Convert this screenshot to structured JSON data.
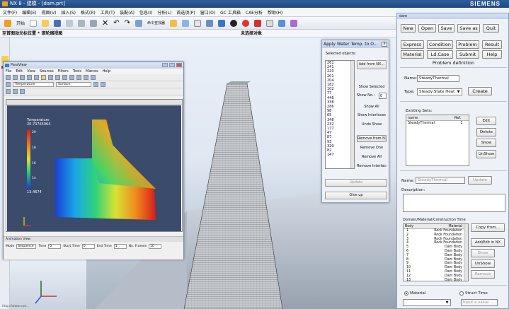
{
  "nx": {
    "title": "NX 8 - 建模 - [dam.prt]",
    "brand": "SIEMENS",
    "menu": [
      "文件(F)",
      "编辑(E)",
      "视图(V)",
      "插入(S)",
      "格式(R)",
      "工具(T)",
      "装配(A)",
      "信息(I)",
      "分析(L)",
      "首选项(P)",
      "窗口(O)",
      "GC 工具箱",
      "CAE分析",
      "帮助(H)"
    ],
    "toolbar": {
      "start_label": "开始",
      "command_finder": "命令查找器"
    },
    "status_left": "至首图动光标位置 * 滚轮缩视图",
    "status_mid": "未选择对象",
    "task_hint": "http://www.cad..."
  },
  "paraview": {
    "title": "ParaView",
    "menu": [
      "File",
      "Edit",
      "View",
      "Sources",
      "Filters",
      "Tools",
      "Macros",
      "Help"
    ],
    "toolbar2": {
      "solid_label": "Surface",
      "field_label": "Temperature"
    },
    "legend": {
      "title": "Temperature",
      "max": "20.70765064",
      "ticks": [
        "20",
        "18",
        "16",
        "14"
      ],
      "min": "13.4674"
    },
    "animation": {
      "title": "Animation View",
      "mode_label": "Mode",
      "mode_value": "Sequence",
      "time_label": "Time",
      "time_value": "0",
      "start_label": "Start Time",
      "start_value": "0",
      "end_label": "End Time",
      "end_value": "1",
      "frames_label": "No. Frames",
      "frames_value": "10"
    }
  },
  "awt": {
    "title": "Apply Water Temp. to O...",
    "close_label": "x",
    "selected_label": "Selected objects:",
    "objects": [
      "261",
      "241",
      "220",
      "201",
      "204",
      "182",
      "102",
      "77",
      "446",
      "338",
      "286",
      "98",
      "65",
      "348",
      "232",
      "177",
      "47",
      "87",
      "93",
      "329",
      "82",
      "147"
    ],
    "buttons": {
      "add_from_nx": "Add from NX...",
      "show_selected": "Show Selected",
      "show_no": "Show No.:",
      "show_no_value": "0",
      "show_all": "Show All",
      "show_interfaces": "Show Interfaces",
      "undo_show": "Undo Show",
      "remove_from_nx": "Remove from NX...",
      "remove_one": "Remove One",
      "remove_all": "Remove All",
      "remove_interfaces": "Remove Interfaces",
      "update": "Update",
      "give_up": "Give up"
    }
  },
  "dam": {
    "title": "dam",
    "row1": [
      "New",
      "Open",
      "Save",
      "Save as",
      "Quit"
    ],
    "row2": [
      "Express",
      "Condition",
      "Problem",
      "Result"
    ],
    "row3": [
      "Material",
      "Ld.Case",
      "Submit",
      "Help"
    ],
    "problem_definition": "Problem definition",
    "name_label": "Name:",
    "name_value": "SteadyThermal",
    "type_label": "Type:",
    "type_value": "Steady State Heat",
    "create_label": "Create",
    "existing_label": "Existing Sets:",
    "sets_header": [
      "name",
      "Ref."
    ],
    "sets_rows": [
      [
        "SteadyThermal",
        "1"
      ]
    ],
    "edit_label": "Edit",
    "delete_label": "Delete",
    "show_label": "Show",
    "unshow_label": "UnShow",
    "name2_label": "Name:",
    "name2_value": "SteadyThermal",
    "update_label": "Update",
    "description_label": "Description:",
    "dm_label": "Domain/Material/Construction Time",
    "dm_header": [
      "Body",
      "Material"
    ],
    "dm_rows": [
      [
        "1",
        "Rock Foundation"
      ],
      [
        "2",
        "Rock Foundation"
      ],
      [
        "3",
        "Rock Foundation"
      ],
      [
        "4",
        "Rock Foundation"
      ],
      [
        "5",
        "Dam Body"
      ],
      [
        "6",
        "Dam Body"
      ],
      [
        "7",
        "Dam Body"
      ],
      [
        "8",
        "Dam Body"
      ],
      [
        "9",
        "Dam Body"
      ],
      [
        "10",
        "Dam Body"
      ],
      [
        "11",
        "Dam Body"
      ],
      [
        "12",
        "Dam Body"
      ],
      [
        "13",
        "Dam Body"
      ]
    ],
    "copy_from_label": "Copy from...",
    "add_edit_label": "Add/Edit in NX",
    "show2_label": "Show",
    "unshow2_label": "UnShow",
    "remove_label": "Remove",
    "radio_material": "Material",
    "radio_struct": "Struct Time",
    "input_value_placeholder": "Input a value"
  }
}
